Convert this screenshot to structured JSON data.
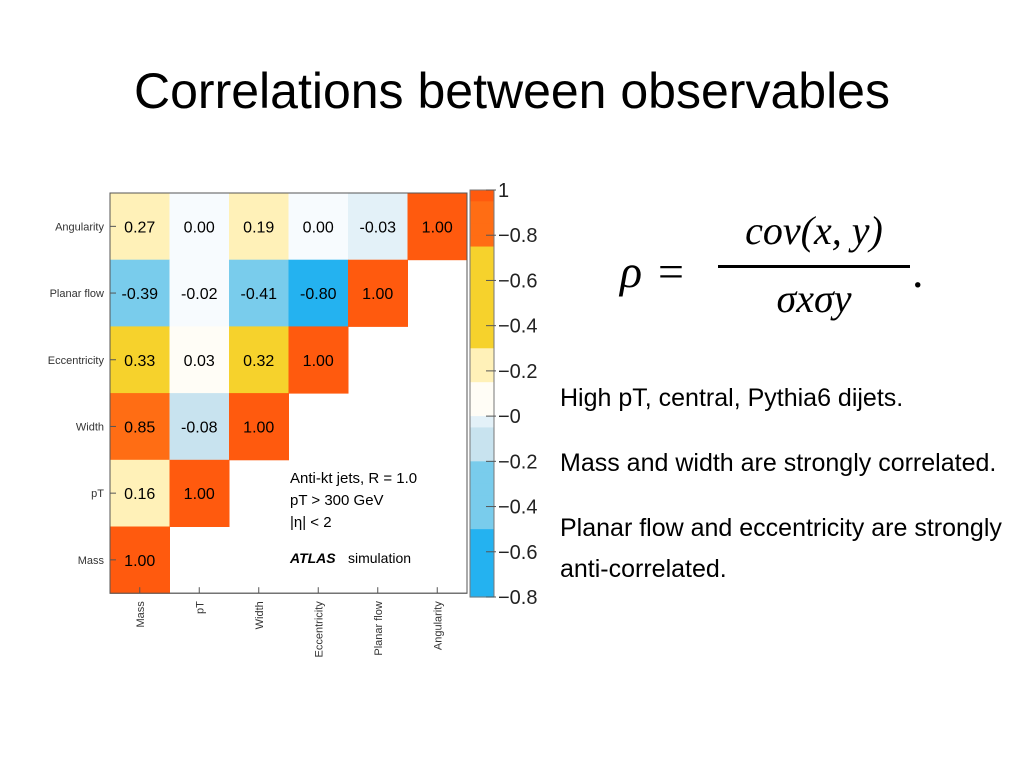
{
  "slide": {
    "title": "Correlations between observables",
    "formula": {
      "lhs": "ρ",
      "equals": "=",
      "numerator": "cov(x, y)",
      "denominator": "σxσy",
      "end": "."
    },
    "bullets": [
      "High pT, central, Pythia6 dijets.",
      "Mass and width are strongly correlated.",
      "Planar flow and eccentricity are strongly anti-correlated."
    ]
  },
  "chart_data": {
    "type": "heatmap",
    "title": "",
    "x_labels": [
      "Mass",
      "pT",
      "Width",
      "Eccentricity",
      "Planar flow",
      "Angularity"
    ],
    "y_labels": [
      "Angularity",
      "Planar flow",
      "Eccentricity",
      "Width",
      "pT",
      "Mass"
    ],
    "matrix": [
      [
        0.27,
        0.0,
        0.19,
        0.0,
        -0.03,
        1.0
      ],
      [
        -0.39,
        -0.02,
        -0.41,
        -0.8,
        1.0,
        null
      ],
      [
        0.33,
        0.03,
        0.32,
        1.0,
        null,
        null
      ],
      [
        0.85,
        -0.08,
        1.0,
        null,
        null,
        null
      ],
      [
        0.16,
        1.0,
        null,
        null,
        null,
        null
      ],
      [
        1.0,
        null,
        null,
        null,
        null,
        null
      ]
    ],
    "colorbar": {
      "range": [
        -0.8,
        1
      ],
      "ticks": [
        "1",
        "0.8",
        "0.6",
        "0.4",
        "0.2",
        "0",
        "-0.2",
        "-0.4",
        "-0.6",
        "-0.8"
      ]
    },
    "legend_text": [
      "Anti-kt jets, R = 1.0",
      "pT > 300 GeV",
      "|η| < 2"
    ],
    "experiment": "ATLAS",
    "experiment_suffix": "simulation"
  }
}
